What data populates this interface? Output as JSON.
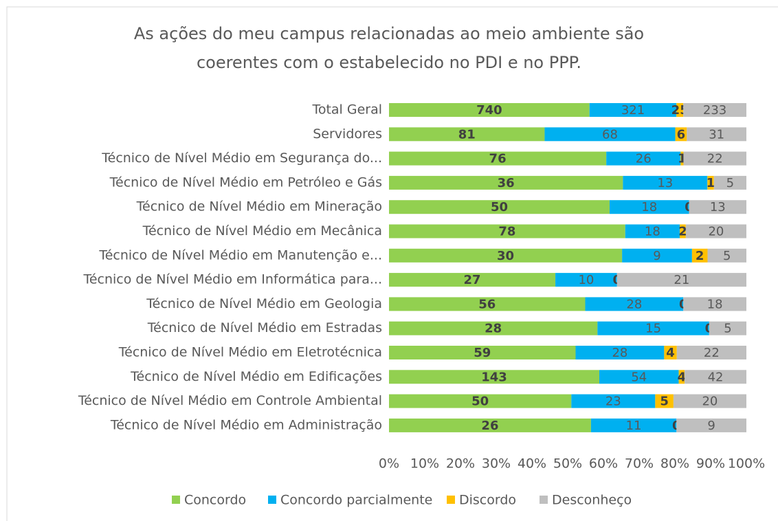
{
  "chart_data": {
    "type": "bar",
    "orientation": "horizontal",
    "stacked": "percent",
    "title": [
      "As ações do meu campus relacionadas ao meio ambiente são",
      "coerentes com o estabelecido no PDI e no PPP."
    ],
    "categories": [
      "Total Geral",
      "Servidores",
      "Técnico de Nível Médio em Segurança do...",
      "Técnico de Nível Médio em Petróleo e Gás",
      "Técnico de Nível Médio em Mineração",
      "Técnico de Nível Médio em Mecânica",
      "Técnico de Nível Médio em Manutenção e...",
      "Técnico de Nível Médio em Informática para...",
      "Técnico de Nível Médio em Geologia",
      "Técnico de Nível Médio em Estradas",
      "Técnico de Nível Médio em Eletrotécnica",
      "Técnico de Nível Médio em Edificações",
      "Técnico de Nível Médio em Controle Ambiental",
      "Técnico de Nível Médio em Administração"
    ],
    "series": [
      {
        "name": "Concordo",
        "color": "#92d050",
        "values": [
          740,
          81,
          76,
          36,
          50,
          78,
          30,
          27,
          56,
          28,
          59,
          143,
          50,
          26
        ]
      },
      {
        "name": "Concordo parcialmente",
        "color": "#00b0f0",
        "values": [
          321,
          68,
          26,
          13,
          18,
          18,
          9,
          10,
          28,
          15,
          28,
          54,
          23,
          11
        ]
      },
      {
        "name": "Discordo",
        "color": "#ffc000",
        "values": [
          25,
          6,
          1,
          1,
          0,
          2,
          2,
          0,
          0,
          0,
          4,
          4,
          5,
          0
        ]
      },
      {
        "name": "Desconheço",
        "color": "#bfbfbf",
        "values": [
          233,
          31,
          22,
          5,
          13,
          20,
          5,
          21,
          18,
          5,
          22,
          42,
          20,
          9
        ]
      }
    ],
    "xlim": [
      0,
      100
    ],
    "xticks": [
      {
        "value": 0,
        "label": "0%"
      },
      {
        "value": 10,
        "label": "10%"
      },
      {
        "value": 20,
        "label": "20%"
      },
      {
        "value": 30,
        "label": "30%"
      },
      {
        "value": 40,
        "label": "40%"
      },
      {
        "value": 50,
        "label": "50%"
      },
      {
        "value": 60,
        "label": "60%"
      },
      {
        "value": 70,
        "label": "70%"
      },
      {
        "value": 80,
        "label": "80%"
      },
      {
        "value": 90,
        "label": "90%"
      },
      {
        "value": 100,
        "label": "100%"
      }
    ],
    "legend": "bottom"
  }
}
